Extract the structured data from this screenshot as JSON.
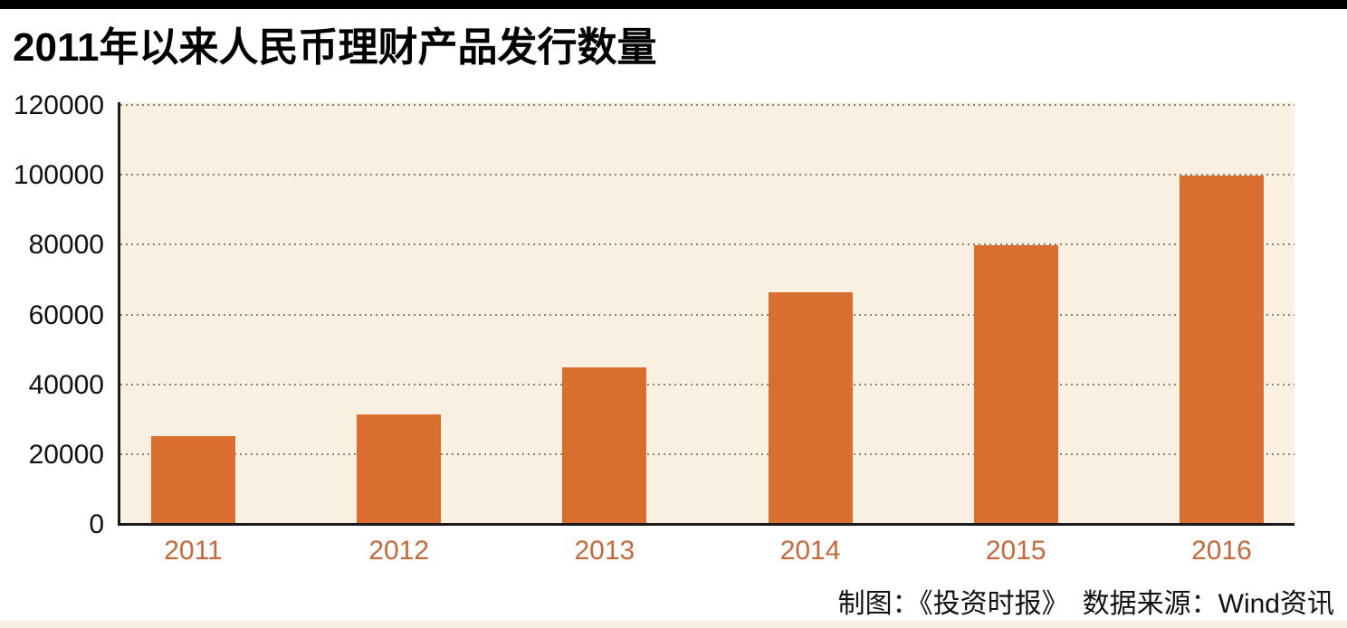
{
  "page": {
    "title": "2011年以来人民币理财产品发行数量",
    "credit": "制图：《投资时报》　数据来源：Wind资讯"
  },
  "chart_data": {
    "type": "bar",
    "title": "2011年以来人民币理财产品发行数量",
    "categories": [
      "2011",
      "2012",
      "2013",
      "2014",
      "2015",
      "2016"
    ],
    "values": [
      25500,
      31500,
      45000,
      66500,
      80000,
      100000
    ],
    "xlabel": "",
    "ylabel": "",
    "ylim": [
      0,
      120000
    ],
    "yticks": [
      0,
      20000,
      40000,
      60000,
      80000,
      100000,
      120000
    ],
    "ytick_interval": 20000,
    "grid": "horizontal-dotted",
    "legend_position": "none",
    "source_note": "制图：《投资时报》　数据来源：Wind资讯"
  },
  "colors": {
    "top_bar": "#000000",
    "bar": "#d96f2e",
    "plot_bg": "#faf0e1",
    "gridline": "#8d8076",
    "axis": "#1a1a1a",
    "year_label": "#c4693c",
    "bottom_strip": "#f9efe0"
  }
}
